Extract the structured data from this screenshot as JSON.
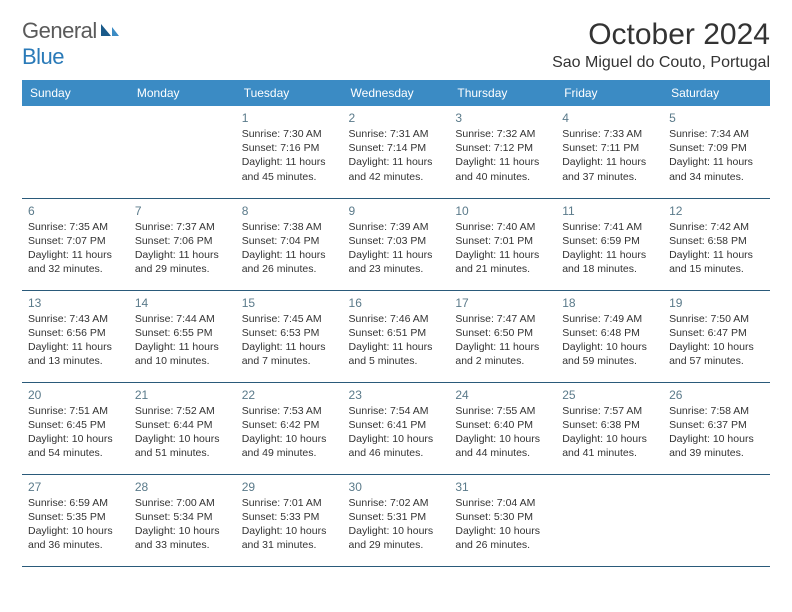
{
  "logo": {
    "part1": "General",
    "part2": "Blue"
  },
  "title": "October 2024",
  "location": "Sao Miguel do Couto, Portugal",
  "colors": {
    "header_bg": "#3b8bc4",
    "border": "#2a5a7a",
    "daynum": "#5a7a8a",
    "logo_gray": "#5a5a5a",
    "logo_blue": "#2a7ab8"
  },
  "weekdays": [
    "Sunday",
    "Monday",
    "Tuesday",
    "Wednesday",
    "Thursday",
    "Friday",
    "Saturday"
  ],
  "weeks": [
    [
      null,
      null,
      {
        "n": "1",
        "sr": "7:30 AM",
        "ss": "7:16 PM",
        "dl": "11 hours and 45 minutes."
      },
      {
        "n": "2",
        "sr": "7:31 AM",
        "ss": "7:14 PM",
        "dl": "11 hours and 42 minutes."
      },
      {
        "n": "3",
        "sr": "7:32 AM",
        "ss": "7:12 PM",
        "dl": "11 hours and 40 minutes."
      },
      {
        "n": "4",
        "sr": "7:33 AM",
        "ss": "7:11 PM",
        "dl": "11 hours and 37 minutes."
      },
      {
        "n": "5",
        "sr": "7:34 AM",
        "ss": "7:09 PM",
        "dl": "11 hours and 34 minutes."
      }
    ],
    [
      {
        "n": "6",
        "sr": "7:35 AM",
        "ss": "7:07 PM",
        "dl": "11 hours and 32 minutes."
      },
      {
        "n": "7",
        "sr": "7:37 AM",
        "ss": "7:06 PM",
        "dl": "11 hours and 29 minutes."
      },
      {
        "n": "8",
        "sr": "7:38 AM",
        "ss": "7:04 PM",
        "dl": "11 hours and 26 minutes."
      },
      {
        "n": "9",
        "sr": "7:39 AM",
        "ss": "7:03 PM",
        "dl": "11 hours and 23 minutes."
      },
      {
        "n": "10",
        "sr": "7:40 AM",
        "ss": "7:01 PM",
        "dl": "11 hours and 21 minutes."
      },
      {
        "n": "11",
        "sr": "7:41 AM",
        "ss": "6:59 PM",
        "dl": "11 hours and 18 minutes."
      },
      {
        "n": "12",
        "sr": "7:42 AM",
        "ss": "6:58 PM",
        "dl": "11 hours and 15 minutes."
      }
    ],
    [
      {
        "n": "13",
        "sr": "7:43 AM",
        "ss": "6:56 PM",
        "dl": "11 hours and 13 minutes."
      },
      {
        "n": "14",
        "sr": "7:44 AM",
        "ss": "6:55 PM",
        "dl": "11 hours and 10 minutes."
      },
      {
        "n": "15",
        "sr": "7:45 AM",
        "ss": "6:53 PM",
        "dl": "11 hours and 7 minutes."
      },
      {
        "n": "16",
        "sr": "7:46 AM",
        "ss": "6:51 PM",
        "dl": "11 hours and 5 minutes."
      },
      {
        "n": "17",
        "sr": "7:47 AM",
        "ss": "6:50 PM",
        "dl": "11 hours and 2 minutes."
      },
      {
        "n": "18",
        "sr": "7:49 AM",
        "ss": "6:48 PM",
        "dl": "10 hours and 59 minutes."
      },
      {
        "n": "19",
        "sr": "7:50 AM",
        "ss": "6:47 PM",
        "dl": "10 hours and 57 minutes."
      }
    ],
    [
      {
        "n": "20",
        "sr": "7:51 AM",
        "ss": "6:45 PM",
        "dl": "10 hours and 54 minutes."
      },
      {
        "n": "21",
        "sr": "7:52 AM",
        "ss": "6:44 PM",
        "dl": "10 hours and 51 minutes."
      },
      {
        "n": "22",
        "sr": "7:53 AM",
        "ss": "6:42 PM",
        "dl": "10 hours and 49 minutes."
      },
      {
        "n": "23",
        "sr": "7:54 AM",
        "ss": "6:41 PM",
        "dl": "10 hours and 46 minutes."
      },
      {
        "n": "24",
        "sr": "7:55 AM",
        "ss": "6:40 PM",
        "dl": "10 hours and 44 minutes."
      },
      {
        "n": "25",
        "sr": "7:57 AM",
        "ss": "6:38 PM",
        "dl": "10 hours and 41 minutes."
      },
      {
        "n": "26",
        "sr": "7:58 AM",
        "ss": "6:37 PM",
        "dl": "10 hours and 39 minutes."
      }
    ],
    [
      {
        "n": "27",
        "sr": "6:59 AM",
        "ss": "5:35 PM",
        "dl": "10 hours and 36 minutes."
      },
      {
        "n": "28",
        "sr": "7:00 AM",
        "ss": "5:34 PM",
        "dl": "10 hours and 33 minutes."
      },
      {
        "n": "29",
        "sr": "7:01 AM",
        "ss": "5:33 PM",
        "dl": "10 hours and 31 minutes."
      },
      {
        "n": "30",
        "sr": "7:02 AM",
        "ss": "5:31 PM",
        "dl": "10 hours and 29 minutes."
      },
      {
        "n": "31",
        "sr": "7:04 AM",
        "ss": "5:30 PM",
        "dl": "10 hours and 26 minutes."
      },
      null,
      null
    ]
  ],
  "labels": {
    "sunrise": "Sunrise: ",
    "sunset": "Sunset: ",
    "daylight": "Daylight: "
  }
}
